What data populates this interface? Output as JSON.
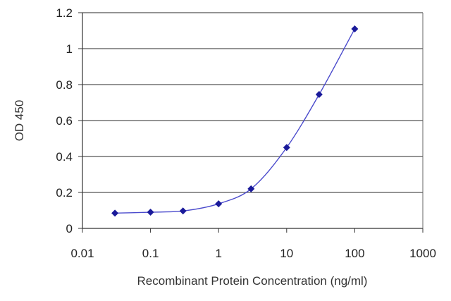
{
  "chart_data": {
    "type": "scatter",
    "xlabel": "Recombinant Protein Concentration (ng/ml)",
    "ylabel": "OD 450",
    "x_scale": "log",
    "xlim": [
      0.01,
      1000
    ],
    "ylim": [
      0,
      1.2
    ],
    "x_ticks": [
      "0.01",
      "0.1",
      "1",
      "10",
      "100",
      "1000"
    ],
    "y_ticks": [
      "0",
      "0.2",
      "0.4",
      "0.6",
      "0.8",
      "1",
      "1.2"
    ],
    "grid": "horizontal",
    "colors": {
      "series": "#1a1a9a",
      "curve": "#4a4acc",
      "grid": "#555555"
    },
    "series": [
      {
        "x": [
          0.03,
          0.1,
          0.3,
          1,
          3,
          10,
          30,
          100
        ],
        "y": [
          0.085,
          0.09,
          0.097,
          0.137,
          0.22,
          0.45,
          0.745,
          1.11
        ]
      }
    ]
  }
}
